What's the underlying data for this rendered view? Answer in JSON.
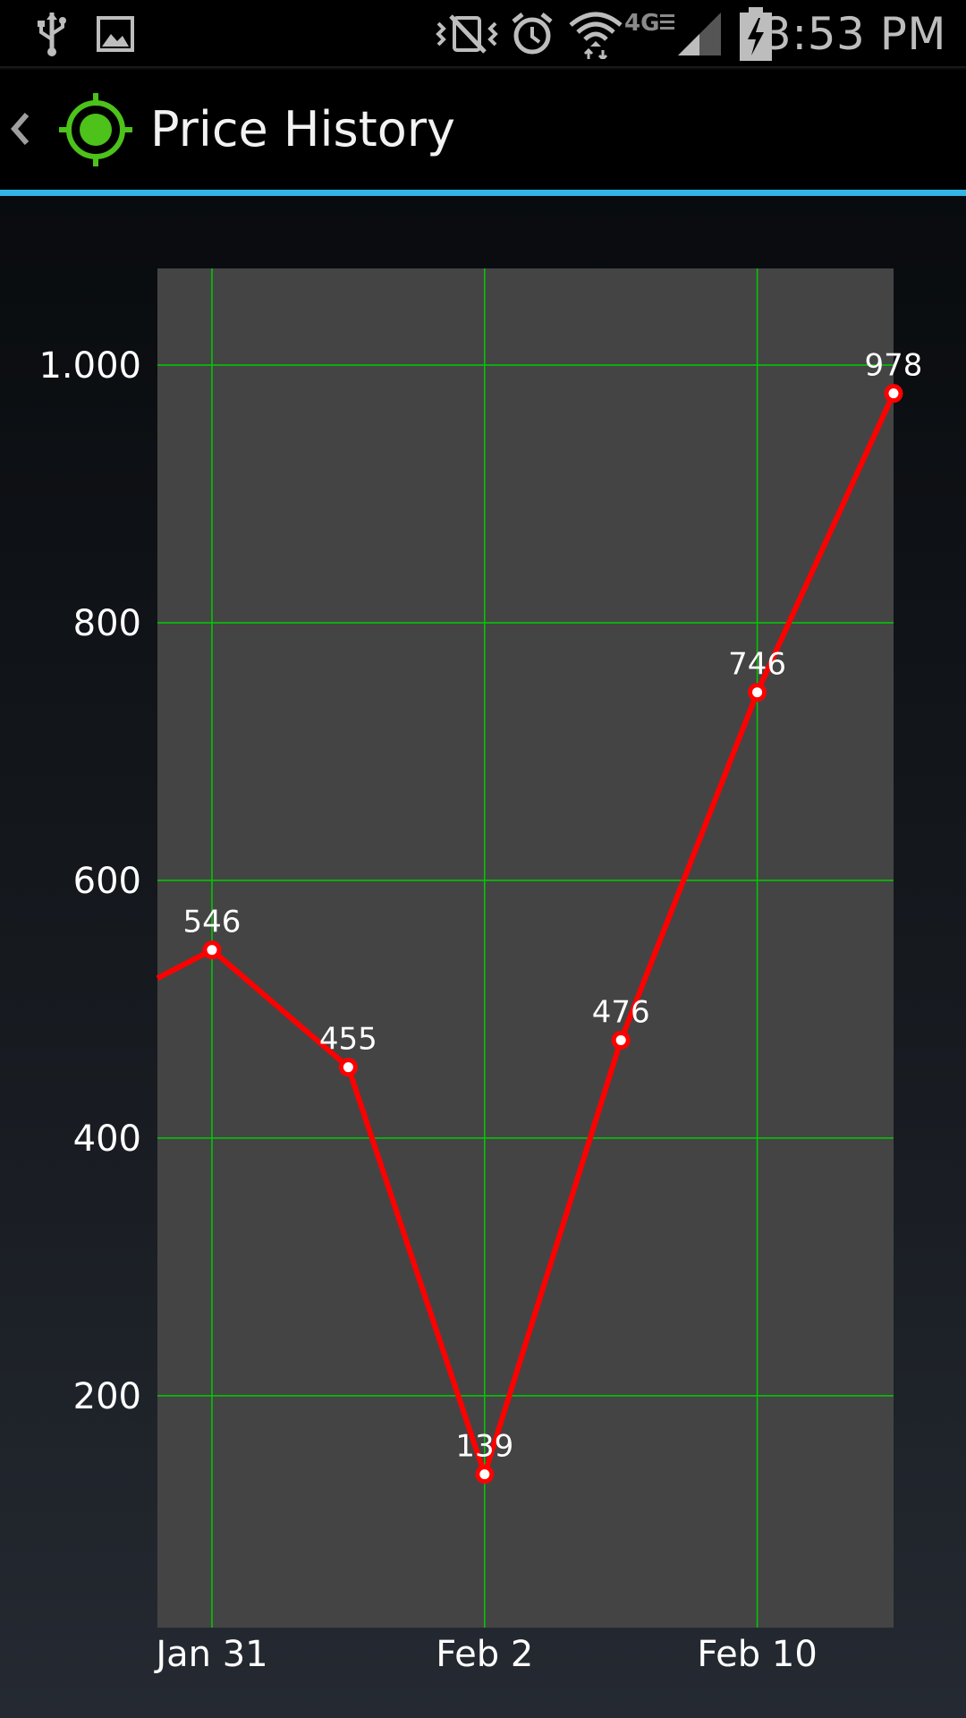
{
  "status_bar": {
    "time": "3:53 PM",
    "icons": [
      "usb-icon",
      "gallery-icon",
      "vibrate-mute-icon",
      "alarm-icon",
      "wifi-icon",
      "network-4g-lte-icon",
      "signal-icon",
      "battery-charging-icon"
    ],
    "network_label": "4G"
  },
  "action_bar": {
    "title": "Price History",
    "up_icon": "chevron-left-icon",
    "app_icon": "target-icon",
    "accent_color": "#33b5e5"
  },
  "chart_data": {
    "type": "line",
    "series": [
      {
        "points": [
          {
            "x": -0.4,
            "y": 524
          },
          {
            "x": 0,
            "y": 546,
            "label": "546"
          },
          {
            "x": 1,
            "y": 455,
            "label": "455"
          },
          {
            "x": 2,
            "y": 139,
            "label": "139"
          },
          {
            "x": 3,
            "y": 476,
            "label": "476"
          },
          {
            "x": 4,
            "y": 746,
            "label": "746"
          },
          {
            "x": 5,
            "y": 978,
            "label": "978"
          }
        ],
        "color": "#ff0000"
      }
    ],
    "x_ticks": [
      {
        "x": 0,
        "label": "Jan 31"
      },
      {
        "x": 2,
        "label": "Feb 2"
      },
      {
        "x": 4,
        "label": "Feb 10"
      }
    ],
    "y_ticks": [
      {
        "y": 200,
        "label": "200"
      },
      {
        "y": 400,
        "label": "400"
      },
      {
        "y": 600,
        "label": "600"
      },
      {
        "y": 800,
        "label": "800"
      },
      {
        "y": 1000,
        "label": "1.000"
      }
    ],
    "xlim": [
      -0.4,
      5
    ],
    "ylim": [
      20,
      1075
    ],
    "grid": true,
    "colors": {
      "plot_background": "#444444",
      "grid": "#00cc00",
      "line": "#ff0000",
      "point_fill": "#ffffff",
      "labels": "#ffffff"
    }
  }
}
